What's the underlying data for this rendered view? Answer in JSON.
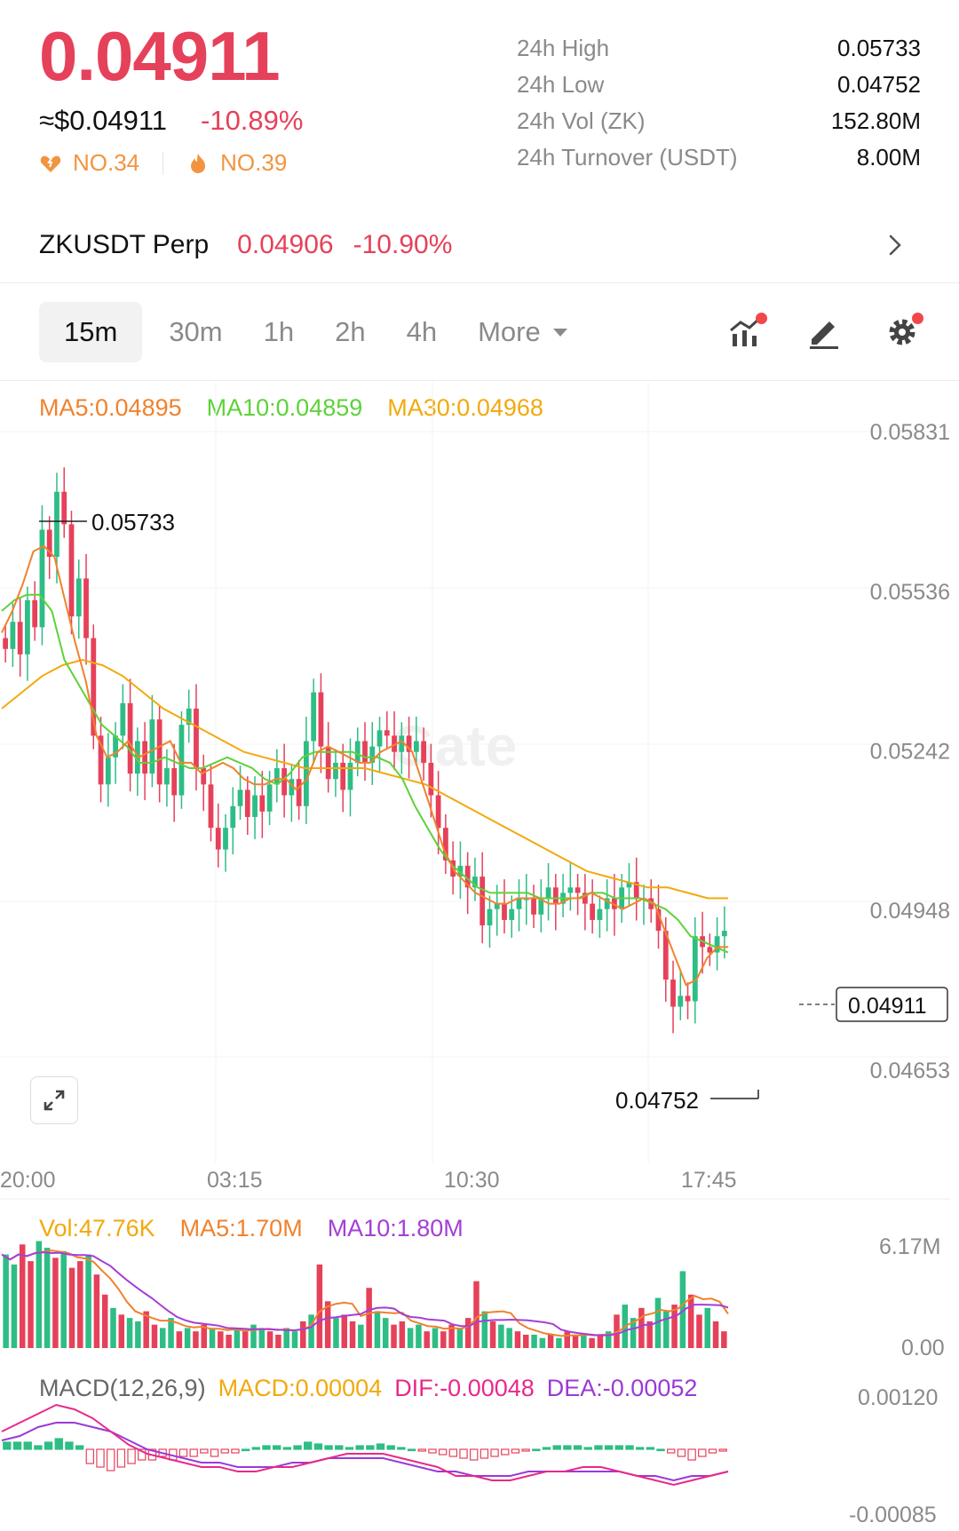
{
  "header": {
    "last_price": "0.04911",
    "approx_usd": "≈$0.04911",
    "change_pct": "-10.89%",
    "rank_1": "NO.34",
    "rank_2": "NO.39",
    "rank_1_icon": "heart-fire-icon",
    "rank_2_icon": "flame-icon"
  },
  "stats": [
    {
      "label": "24h High",
      "value": "0.05733"
    },
    {
      "label": "24h Low",
      "value": "0.04752"
    },
    {
      "label": "24h Vol (ZK)",
      "value": "152.80M"
    },
    {
      "label": "24h Turnover (USDT)",
      "value": "8.00M"
    }
  ],
  "perp": {
    "name": "ZKUSDT Perp",
    "price": "0.04906",
    "change": "-10.90%"
  },
  "timeframes": {
    "tf_15m": "15m",
    "tf_30m": "30m",
    "tf_1h": "1h",
    "tf_2h": "2h",
    "tf_4h": "4h",
    "more": "More",
    "active": "15m"
  },
  "indicators": {
    "ma5": "MA5:0.04895",
    "ma10": "MA10:0.04859",
    "ma30": "MA30:0.04968",
    "vol": "Vol:47.76K",
    "vol_ma5": "MA5:1.70M",
    "vol_ma10": "MA10:1.80M",
    "macd_title": "MACD(12,26,9)",
    "macd_value": "MACD:0.00004",
    "dif": "DIF:-0.00048",
    "dea": "DEA:-0.00052"
  },
  "colors": {
    "up": "#2ebd85",
    "down": "#e6415a",
    "ma5": "#f0822e",
    "ma10": "#5fd13a",
    "ma30": "#f2a90d",
    "vol_ma10": "#a43fd6",
    "dif": "#e8298a",
    "dea": "#9a3ad6"
  },
  "chart_data": {
    "type": "candlestick",
    "price_axis": [
      "0.05831",
      "0.05536",
      "0.05242",
      "0.04948",
      "0.04653"
    ],
    "price_range": [
      0.04653,
      0.05831
    ],
    "time_labels": [
      "20:00",
      "03:15",
      "10:30",
      "17:45"
    ],
    "high_marker": "0.05733",
    "low_marker": "0.04752",
    "current_price_tag": "0.04911",
    "vol_axis": [
      "6.17M",
      "0.00"
    ],
    "macd_axis": [
      "0.00120",
      "-0.00085"
    ],
    "watermark": "Gate",
    "candles_close": [
      0.0543,
      0.0548,
      0.0542,
      0.0552,
      0.0547,
      0.0565,
      0.056,
      0.0572,
      0.0566,
      0.0549,
      0.0556,
      0.0545,
      0.0527,
      0.0518,
      0.0523,
      0.0527,
      0.0533,
      0.052,
      0.0526,
      0.052,
      0.053,
      0.0518,
      0.0521,
      0.0516,
      0.0529,
      0.0532,
      0.0521,
      0.0518,
      0.051,
      0.0506,
      0.051,
      0.0514,
      0.0517,
      0.0512,
      0.0516,
      0.0513,
      0.0518,
      0.0521,
      0.0516,
      0.0519,
      0.0514,
      0.0526,
      0.0535,
      0.0525,
      0.0519,
      0.0522,
      0.0517,
      0.0522,
      0.0526,
      0.0522,
      0.0525,
      0.0528,
      0.0527,
      0.0524,
      0.0527,
      0.0524,
      0.0526,
      0.0522,
      0.0516,
      0.051,
      0.0504,
      0.0501,
      0.0503,
      0.0499,
      0.0501,
      0.0492,
      0.0495,
      0.0496,
      0.0493,
      0.0495,
      0.0497,
      0.0497,
      0.0494,
      0.0497,
      0.0499,
      0.0496,
      0.0498,
      0.0499,
      0.0498,
      0.0496,
      0.0493,
      0.0495,
      0.0497,
      0.0495,
      0.0499,
      0.05,
      0.0497,
      0.0497,
      0.0495,
      0.0491,
      0.0482,
      0.0477,
      0.0479,
      0.0478,
      0.049,
      0.0488,
      0.0487,
      0.049,
      0.0491
    ],
    "ma5": [
      0.0546,
      0.055,
      0.0555,
      0.0561,
      0.0562,
      0.056,
      0.0552,
      0.0544,
      0.0537,
      0.0527,
      0.0523,
      0.0524,
      0.0526,
      0.0523,
      0.0524,
      0.0525,
      0.0526,
      0.0522,
      0.0522,
      0.052,
      0.0521,
      0.0522,
      0.0521,
      0.0519,
      0.0518,
      0.0518,
      0.0519,
      0.0519,
      0.0517,
      0.0519,
      0.0524,
      0.0525,
      0.0524,
      0.0523,
      0.0522,
      0.0522,
      0.0524,
      0.0525,
      0.0526,
      0.0524,
      0.0518,
      0.0512,
      0.0506,
      0.0502,
      0.05,
      0.0498,
      0.0497,
      0.0496,
      0.0496,
      0.0497,
      0.0497,
      0.0497,
      0.0496,
      0.0496,
      0.0497,
      0.0497,
      0.0498,
      0.0497,
      0.0496,
      0.0495,
      0.0496,
      0.0497,
      0.0496,
      0.0491,
      0.0486,
      0.0481,
      0.0482,
      0.0486,
      0.0488,
      0.0488
    ],
    "ma10": [
      0.055,
      0.0552,
      0.0553,
      0.0553,
      0.055,
      0.0541,
      0.0537,
      0.0533,
      0.0529,
      0.0527,
      0.0525,
      0.0522,
      0.0522,
      0.0523,
      0.0522,
      0.0521,
      0.0521,
      0.0522,
      0.0523,
      0.0522,
      0.0521,
      0.0519,
      0.0518,
      0.052,
      0.0523,
      0.0524,
      0.0524,
      0.0524,
      0.0524,
      0.0523,
      0.0523,
      0.0522,
      0.0519,
      0.0514,
      0.051,
      0.0506,
      0.0503,
      0.0501,
      0.0499,
      0.0498,
      0.0498,
      0.0498,
      0.0498,
      0.0497,
      0.0497,
      0.0497,
      0.0497,
      0.0498,
      0.0498,
      0.0497,
      0.0497,
      0.0497,
      0.0496,
      0.0495,
      0.0493,
      0.049,
      0.0489,
      0.0488,
      0.0487
    ],
    "ma30": [
      0.0532,
      0.0535,
      0.0538,
      0.054,
      0.0541,
      0.054,
      0.0538,
      0.0535,
      0.0532,
      0.053,
      0.0528,
      0.0526,
      0.0524,
      0.0523,
      0.0522,
      0.0521,
      0.0521,
      0.0521,
      0.0521,
      0.052,
      0.0519,
      0.0518,
      0.0516,
      0.0514,
      0.0512,
      0.051,
      0.0508,
      0.0506,
      0.0504,
      0.0502,
      0.0501,
      0.05,
      0.0499,
      0.0499,
      0.0498,
      0.0497,
      0.0497
    ],
    "volume": [
      2.8,
      2.5,
      3.1,
      2.6,
      3.2,
      3.0,
      2.7,
      2.9,
      2.4,
      2.6,
      2.8,
      2.2,
      1.6,
      1.2,
      1.0,
      0.9,
      0.8,
      1.1,
      0.7,
      0.6,
      0.9,
      0.5,
      0.6,
      0.5,
      0.7,
      0.6,
      0.5,
      0.4,
      0.6,
      0.5,
      0.7,
      0.6,
      0.5,
      0.4,
      0.6,
      0.5,
      0.8,
      1.0,
      2.5,
      1.4,
      0.9,
      1.0,
      0.8,
      0.7,
      1.8,
      1.1,
      0.9,
      0.7,
      0.8,
      0.6,
      0.7,
      0.5,
      0.6,
      0.5,
      0.7,
      0.6,
      0.9,
      2.0,
      1.1,
      0.8,
      0.7,
      0.6,
      0.5,
      0.4,
      0.4,
      0.3,
      0.4,
      0.3,
      0.5,
      0.4,
      0.4,
      0.3,
      0.4,
      0.5,
      1.0,
      1.3,
      0.9,
      1.2,
      0.8,
      1.5,
      1.1,
      1.3,
      2.3,
      1.6,
      1.0,
      1.2,
      0.8,
      0.5
    ],
    "macd_hist": [
      0.2,
      0.2,
      0.2,
      0.1,
      0.2,
      0.3,
      0.2,
      0.1,
      -0.4,
      -0.5,
      -0.6,
      -0.5,
      -0.4,
      -0.3,
      -0.3,
      -0.2,
      -0.3,
      -0.2,
      -0.2,
      -0.1,
      -0.2,
      -0.1,
      -0.1,
      0.0,
      0.05,
      0.1,
      0.1,
      0.05,
      0.1,
      0.2,
      0.15,
      0.1,
      0.1,
      0.05,
      0.1,
      0.1,
      0.15,
      0.1,
      0.05,
      0.0,
      -0.05,
      -0.1,
      -0.15,
      -0.2,
      -0.25,
      -0.3,
      -0.25,
      -0.2,
      -0.15,
      -0.1,
      -0.05,
      0.0,
      0.05,
      0.1,
      0.1,
      0.1,
      0.05,
      0.1,
      0.1,
      0.1,
      0.1,
      0.05,
      0.05,
      0.0,
      -0.1,
      -0.2,
      -0.3,
      -0.2,
      -0.1,
      -0.05
    ],
    "dif": [
      0.0004,
      0.0006,
      0.0008,
      0.001,
      0.0009,
      0.0007,
      0.0004,
      0.0001,
      -0.0001,
      -0.0002,
      -0.0003,
      -0.0004,
      -0.0004,
      -0.0005,
      -0.0005,
      -0.0004,
      -0.0004,
      -0.0003,
      -0.0002,
      -0.0001,
      -0.0001,
      -0.0001,
      -0.0002,
      -0.0003,
      -0.0004,
      -0.0006,
      -0.0006,
      -0.0007,
      -0.0007,
      -0.0006,
      -0.0005,
      -0.0005,
      -0.0004,
      -0.0004,
      -0.0005,
      -0.0006,
      -0.0007,
      -0.0008,
      -0.0007,
      -0.0006,
      -0.0005
    ],
    "dea": [
      0.0002,
      0.0003,
      0.0005,
      0.0006,
      0.0006,
      0.0005,
      0.0004,
      0.0002,
      0.0,
      -0.0001,
      -0.0002,
      -0.0003,
      -0.0003,
      -0.0004,
      -0.0004,
      -0.0004,
      -0.0003,
      -0.0003,
      -0.0002,
      -0.0002,
      -0.0002,
      -0.0002,
      -0.0003,
      -0.0004,
      -0.0005,
      -0.0005,
      -0.0006,
      -0.0006,
      -0.0006,
      -0.0005,
      -0.0005,
      -0.0005,
      -0.0005,
      -0.0005,
      -0.0005,
      -0.0006,
      -0.0006,
      -0.0007,
      -0.0006,
      -0.0006,
      -0.0005
    ]
  }
}
